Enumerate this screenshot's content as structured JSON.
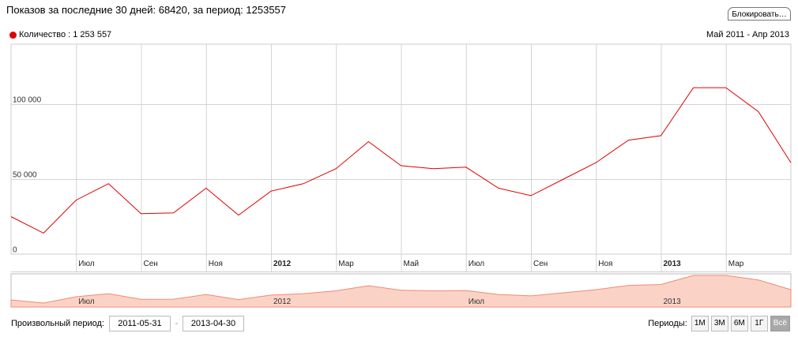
{
  "header": {
    "summary": "Показов за последние 30 дней: 68420, за период: 1253557",
    "block_button": "Блокировать…"
  },
  "legend": {
    "label": "Количество : 1 253 557",
    "color": "#e00000"
  },
  "range_label": "Май 2011 - Апр 2013",
  "chart_data": {
    "type": "line",
    "title": "",
    "series": [
      {
        "name": "Количество",
        "color": "#e00000",
        "x": [
          "2011-05",
          "2011-06",
          "2011-07",
          "2011-08",
          "2011-09",
          "2011-10",
          "2011-11",
          "2011-12",
          "2012-01",
          "2012-02",
          "2012-03",
          "2012-04",
          "2012-05",
          "2012-06",
          "2012-07",
          "2012-08",
          "2012-09",
          "2012-10",
          "2012-11",
          "2012-12",
          "2013-01",
          "2013-02",
          "2013-03",
          "2013-04",
          "2013-05"
        ],
        "values": [
          25000,
          14000,
          36000,
          47000,
          27000,
          27500,
          44000,
          26000,
          42000,
          47000,
          57000,
          75000,
          59000,
          57000,
          58000,
          44000,
          39000,
          50000,
          61000,
          76000,
          79000,
          111000,
          111000,
          95000,
          61000
        ]
      }
    ],
    "ylim": [
      0,
      140000
    ],
    "y_ticks": [
      {
        "value": 0,
        "label": "0"
      },
      {
        "value": 50000,
        "label": "50 000"
      },
      {
        "value": 100000,
        "label": "100 000"
      }
    ],
    "x_ticks": [
      {
        "index": 2,
        "label": "Июл",
        "bold": false
      },
      {
        "index": 4,
        "label": "Сен",
        "bold": false
      },
      {
        "index": 6,
        "label": "Ноя",
        "bold": false
      },
      {
        "index": 8,
        "label": "2012",
        "bold": true
      },
      {
        "index": 10,
        "label": "Мар",
        "bold": false
      },
      {
        "index": 12,
        "label": "Май",
        "bold": false
      },
      {
        "index": 14,
        "label": "Июл",
        "bold": false
      },
      {
        "index": 16,
        "label": "Сен",
        "bold": false
      },
      {
        "index": 18,
        "label": "Ноя",
        "bold": false
      },
      {
        "index": 20,
        "label": "2013",
        "bold": true
      },
      {
        "index": 22,
        "label": "Мар",
        "bold": false
      }
    ],
    "navigator_labels": [
      {
        "index": 2,
        "label": "Июл"
      },
      {
        "index": 8,
        "label": "2012"
      },
      {
        "index": 14,
        "label": "Июл"
      },
      {
        "index": 20,
        "label": "2013"
      }
    ],
    "grid": true
  },
  "footer": {
    "custom_period_label": "Произвольный период:",
    "date_from": "2011-05-31",
    "date_separator": "-",
    "date_to": "2013-04-30",
    "periods_label": "Периоды:",
    "periods": [
      "1М",
      "3М",
      "6М",
      "1Г",
      "Всё"
    ],
    "active_period": "Всё"
  }
}
